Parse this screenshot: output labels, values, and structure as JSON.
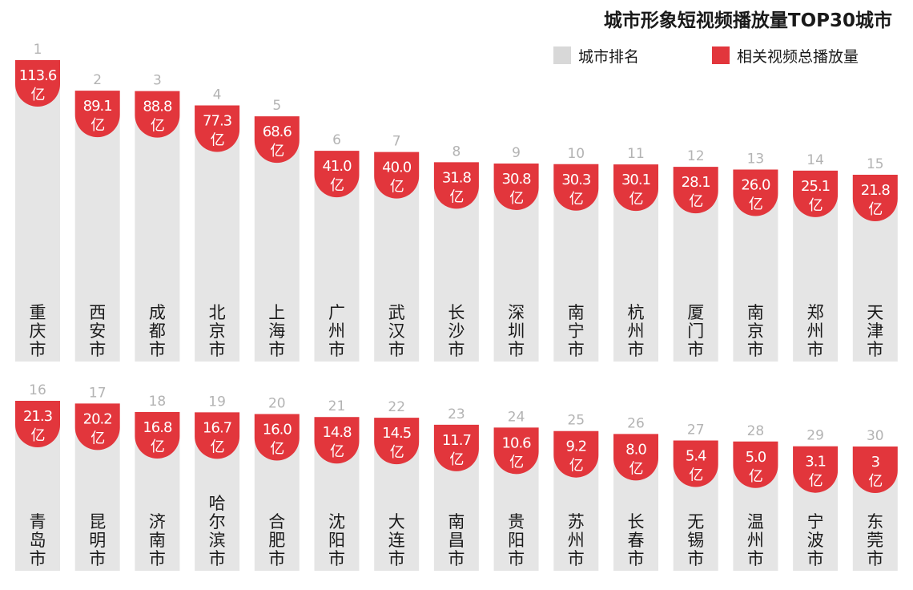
{
  "chart_data": {
    "type": "bar",
    "title": "城市形象短视频播放量TOP30城市",
    "legend": [
      {
        "label": "城市排名",
        "color": "#d8d8d8"
      },
      {
        "label": "相关视频总播放量",
        "color": "#e2363c"
      }
    ],
    "unit": "亿",
    "legend_position": "top-right",
    "series": [
      {
        "name": "相关视频总播放量",
        "points": [
          {
            "rank": "1",
            "city": "重庆市",
            "value": 113.6,
            "label": "113.6"
          },
          {
            "rank": "2",
            "city": "西安市",
            "value": 89.1,
            "label": "89.1"
          },
          {
            "rank": "3",
            "city": "成都市",
            "value": 88.8,
            "label": "88.8"
          },
          {
            "rank": "4",
            "city": "北京市",
            "value": 77.3,
            "label": "77.3"
          },
          {
            "rank": "5",
            "city": "上海市",
            "value": 68.6,
            "label": "68.6"
          },
          {
            "rank": "6",
            "city": "广州市",
            "value": 41.0,
            "label": "41.0"
          },
          {
            "rank": "7",
            "city": "武汉市",
            "value": 40.0,
            "label": "40.0"
          },
          {
            "rank": "8",
            "city": "长沙市",
            "value": 31.8,
            "label": "31.8"
          },
          {
            "rank": "9",
            "city": "深圳市",
            "value": 30.8,
            "label": "30.8"
          },
          {
            "rank": "10",
            "city": "南宁市",
            "value": 30.3,
            "label": "30.3"
          },
          {
            "rank": "11",
            "city": "杭州市",
            "value": 30.1,
            "label": "30.1"
          },
          {
            "rank": "12",
            "city": "厦门市",
            "value": 28.1,
            "label": "28.1"
          },
          {
            "rank": "13",
            "city": "南京市",
            "value": 26.0,
            "label": "26.0"
          },
          {
            "rank": "14",
            "city": "郑州市",
            "value": 25.1,
            "label": "25.1"
          },
          {
            "rank": "15",
            "city": "天津市",
            "value": 21.8,
            "label": "21.8"
          },
          {
            "rank": "16",
            "city": "青岛市",
            "value": 21.3,
            "label": "21.3"
          },
          {
            "rank": "17",
            "city": "昆明市",
            "value": 20.2,
            "label": "20.2"
          },
          {
            "rank": "18",
            "city": "济南市",
            "value": 16.8,
            "label": "16.8"
          },
          {
            "rank": "19",
            "city": "哈尔滨市",
            "value": 16.7,
            "label": "16.7"
          },
          {
            "rank": "20",
            "city": "合肥市",
            "value": 16.0,
            "label": "16.0"
          },
          {
            "rank": "21",
            "city": "沈阳市",
            "value": 14.8,
            "label": "14.8"
          },
          {
            "rank": "22",
            "city": "大连市",
            "value": 14.5,
            "label": "14.5"
          },
          {
            "rank": "23",
            "city": "南昌市",
            "value": 11.7,
            "label": "11.7"
          },
          {
            "rank": "24",
            "city": "贵阳市",
            "value": 10.6,
            "label": "10.6"
          },
          {
            "rank": "25",
            "city": "苏州市",
            "value": 9.2,
            "label": "9.2"
          },
          {
            "rank": "26",
            "city": "长春市",
            "value": 8.0,
            "label": "8.0"
          },
          {
            "rank": "27",
            "city": "无锡市",
            "value": 5.4,
            "label": "5.4"
          },
          {
            "rank": "28",
            "city": "温州市",
            "value": 5.0,
            "label": "5.0"
          },
          {
            "rank": "29",
            "city": "宁波市",
            "value": 3.1,
            "label": "3.1"
          },
          {
            "rank": "30",
            "city": "东莞市",
            "value": 3.0,
            "label": "3"
          }
        ]
      }
    ],
    "colors": {
      "bar": "#e5e5e5",
      "value_badge": "#e2363c",
      "rank_text": "#b3b3b3"
    }
  }
}
